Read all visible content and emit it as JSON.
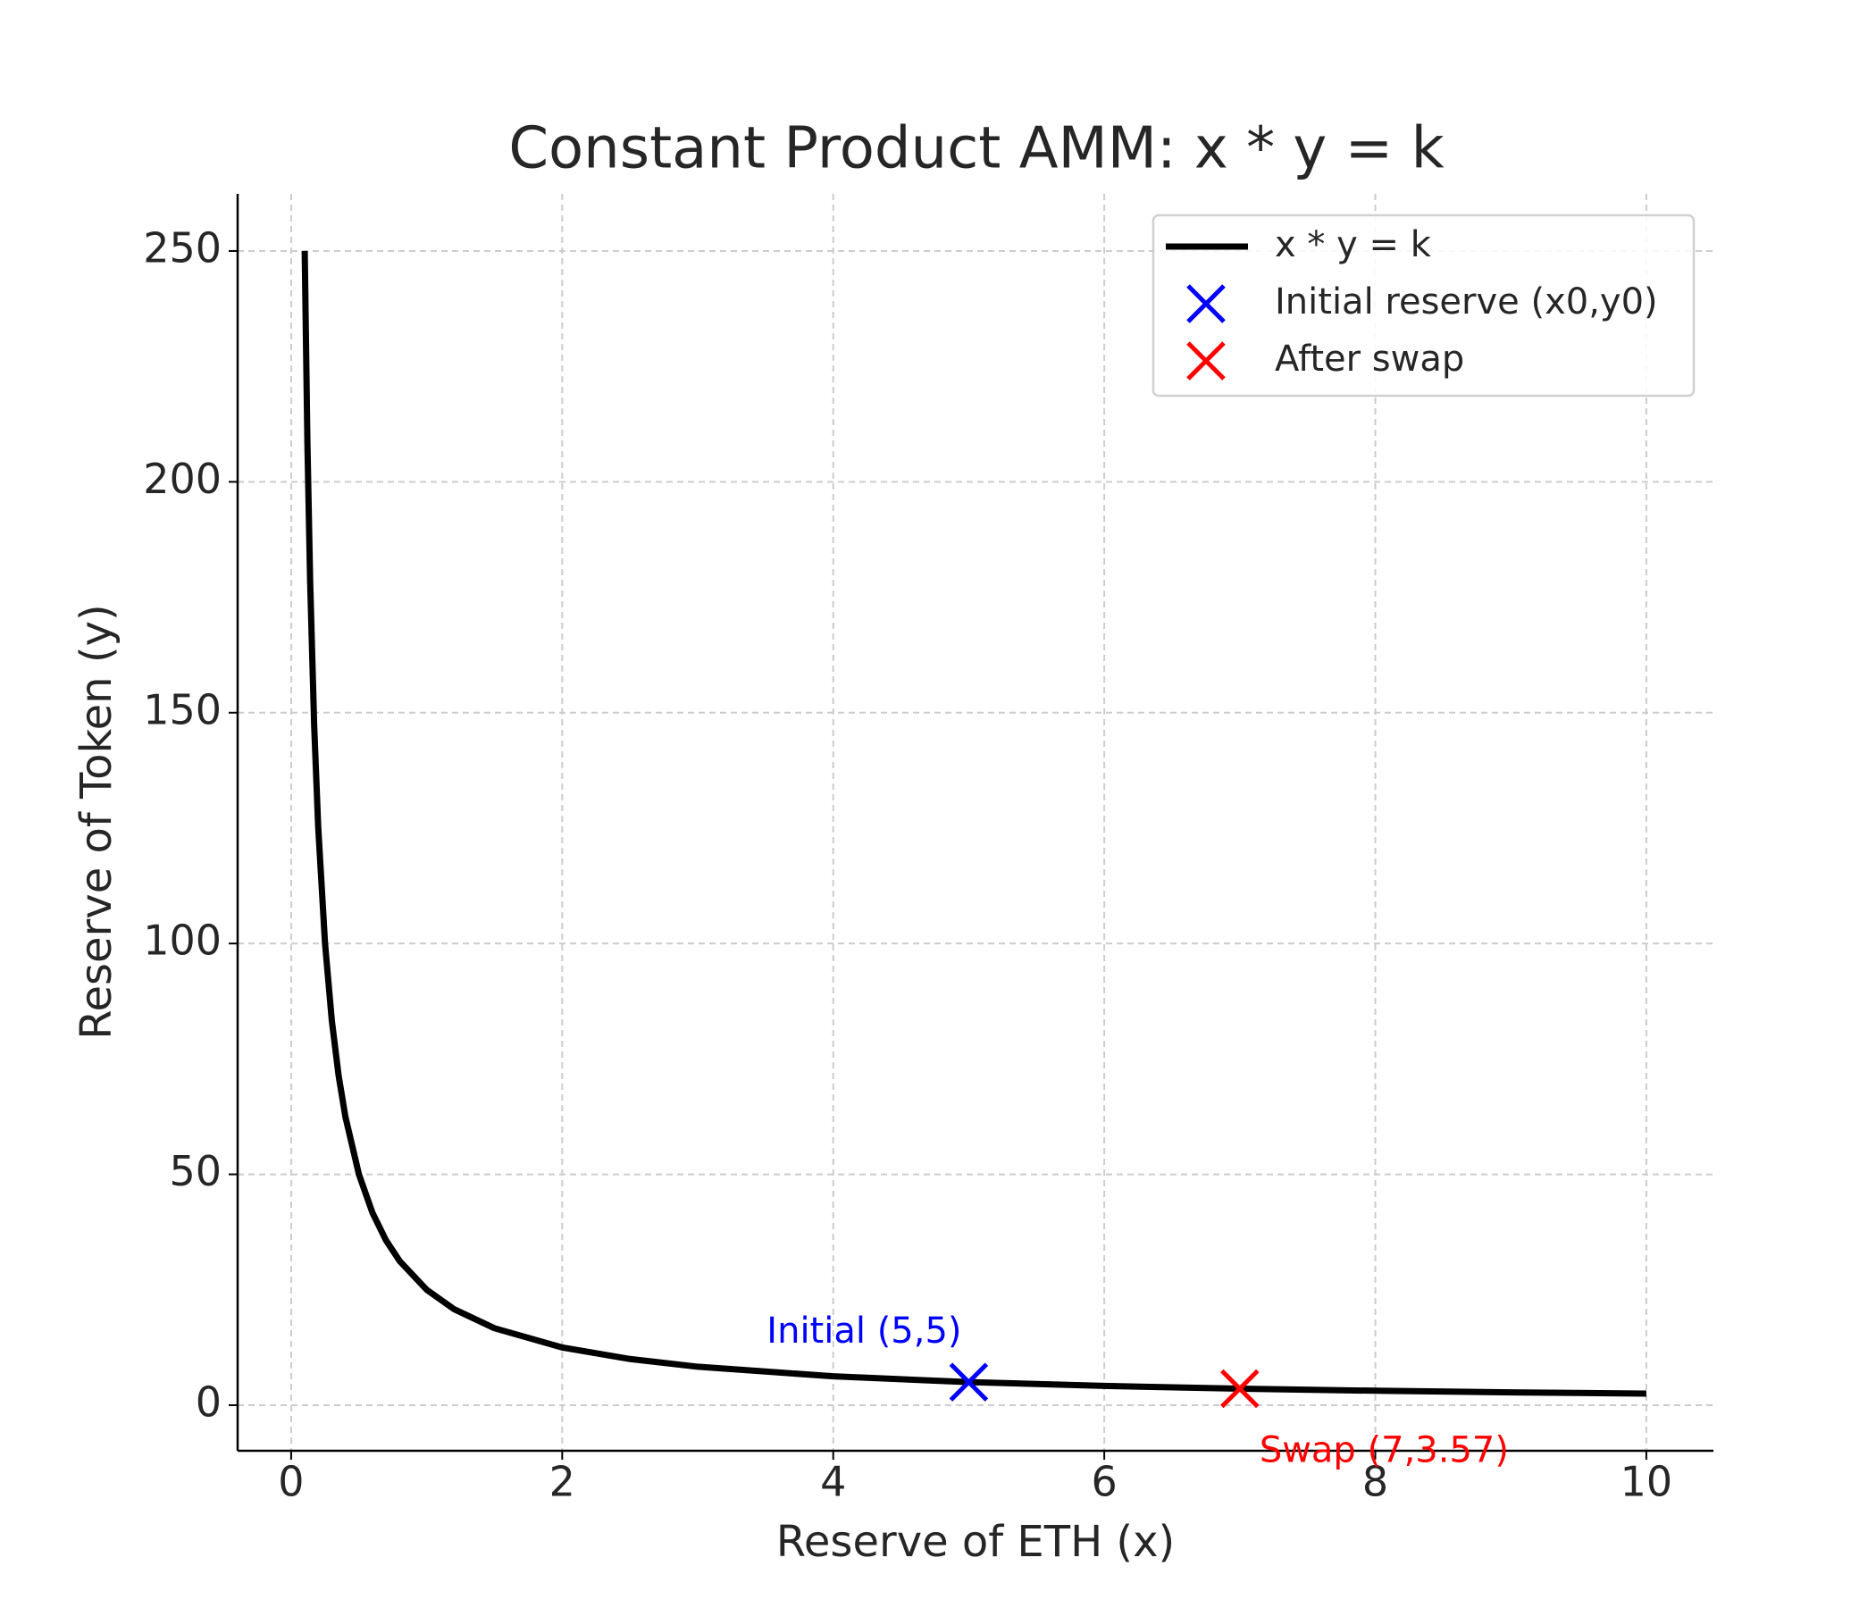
{
  "chart_data": {
    "type": "line",
    "title": "Constant Product AMM: x * y = k",
    "x_label": "Reserve of ETH (x)",
    "y_label": "Reserve of Token (y)",
    "series": [
      {
        "name": "x * y = k",
        "color": "#000000",
        "kind": "line",
        "x": [
          0.1,
          0.12,
          0.14,
          0.17,
          0.2,
          0.25,
          0.3,
          0.35,
          0.4,
          0.5,
          0.6,
          0.7,
          0.8,
          1,
          1.2,
          1.5,
          2,
          2.5,
          3,
          4,
          5,
          6,
          7,
          8,
          9,
          10
        ],
        "values": [
          250,
          208.33,
          178.57,
          147.06,
          125,
          100,
          83.33,
          71.43,
          62.5,
          50,
          41.67,
          35.71,
          31.25,
          25,
          20.83,
          16.67,
          12.5,
          10,
          8.33,
          6.25,
          5,
          4.17,
          3.57,
          3.13,
          2.78,
          2.5
        ]
      },
      {
        "name": "Initial reserve (x0,y0)",
        "color": "#0000ff",
        "kind": "x-marker",
        "x": [
          5
        ],
        "values": [
          5
        ]
      },
      {
        "name": "After swap",
        "color": "#ff0000",
        "kind": "x-marker",
        "x": [
          7
        ],
        "values": [
          3.57
        ]
      }
    ],
    "annotations": [
      {
        "text": "Initial (5,5)",
        "color": "#0000ff"
      },
      {
        "text": "Swap (7,3.57)",
        "color": "#ff0000"
      }
    ],
    "xlim": [
      -0.395,
      10.495
    ],
    "ylim": [
      -9.875,
      262.375
    ],
    "xticks": [
      0,
      2,
      4,
      6,
      8,
      10
    ],
    "yticks": [
      0,
      50,
      100,
      150,
      200,
      250
    ],
    "grid": true,
    "legend": "upper right"
  }
}
